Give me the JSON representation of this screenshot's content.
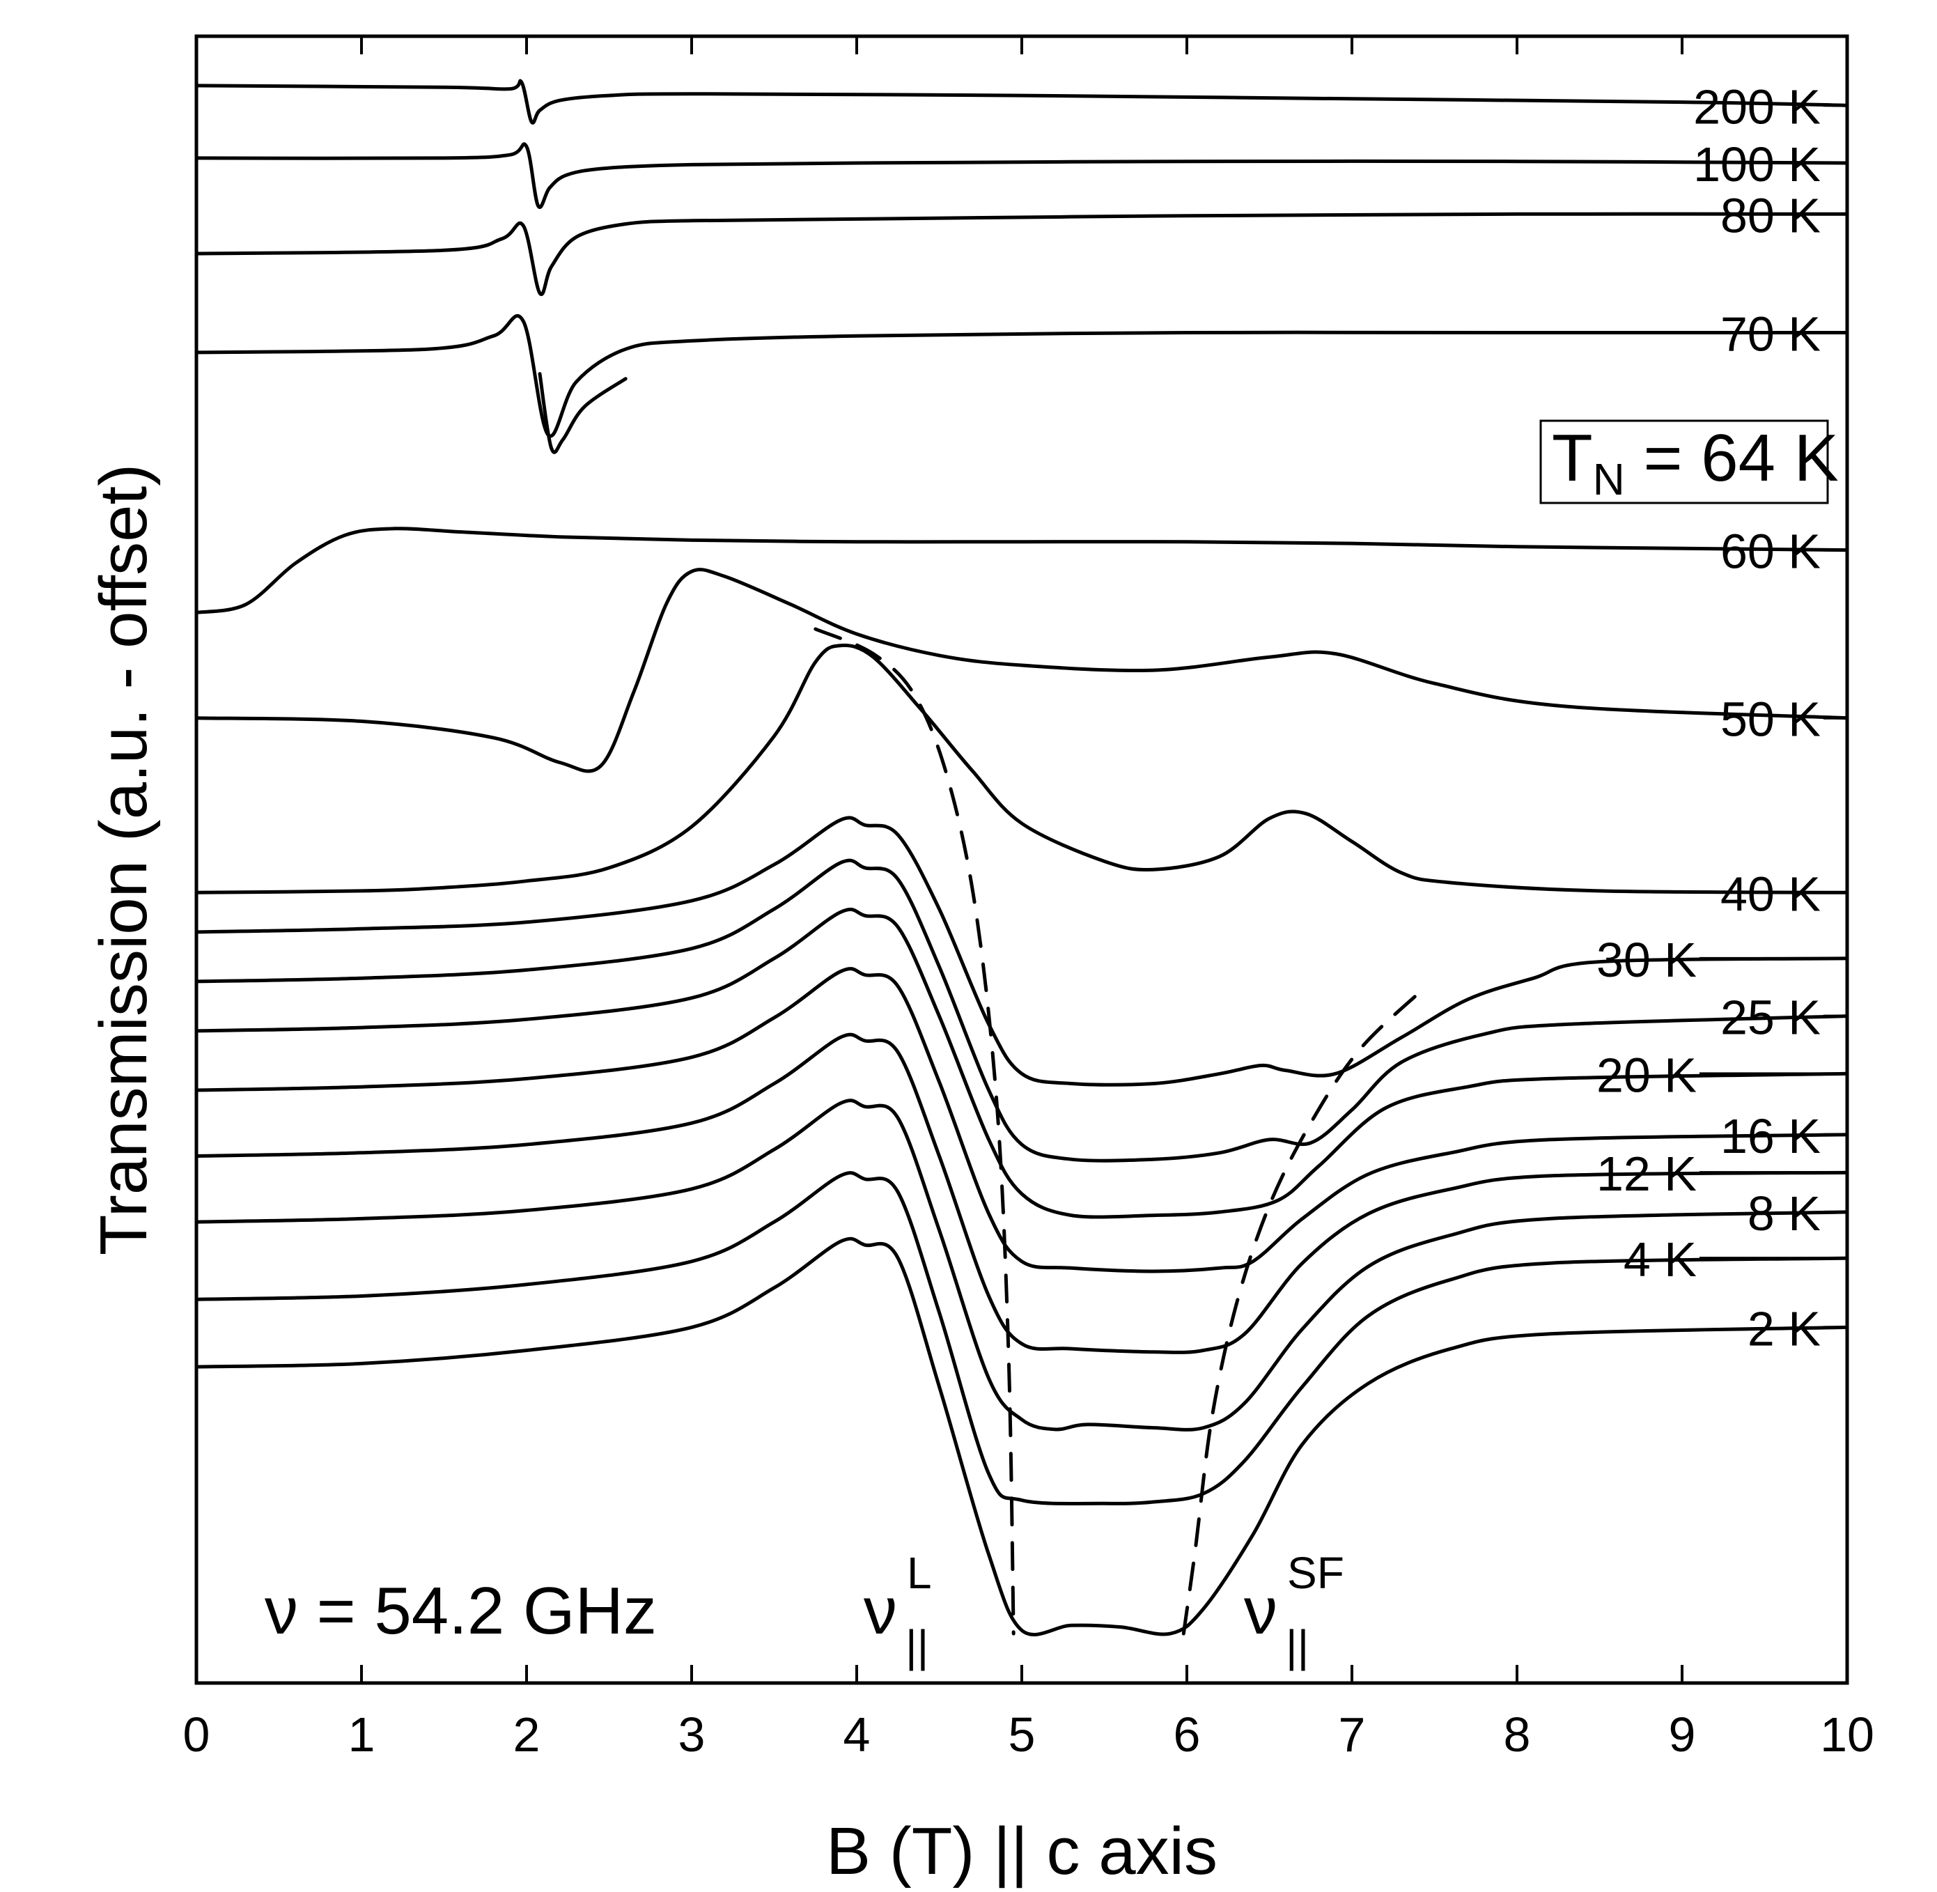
{
  "chart_data": {
    "type": "line",
    "title": "",
    "xlabel": "B (T) || c axis",
    "ylabel": "Transmission (a.u. - offset)",
    "xlim": [
      0,
      10
    ],
    "ylim": [
      0,
      10
    ],
    "xticks": [
      0,
      1,
      2,
      3,
      4,
      5,
      6,
      7,
      8,
      9,
      10
    ],
    "xtick_labels": [
      "0",
      "1",
      "2",
      "3",
      "4",
      "5",
      "6",
      "7",
      "8",
      "9",
      "10"
    ],
    "grid": false,
    "y_units": "arbitrary units, curves offset vertically",
    "annotations": {
      "frequency": "ν = 54.2 GHz",
      "neel_prefix": "T",
      "neel_sub": "N",
      "neel_value": " = 64 K",
      "mode_L_symbol": "ν",
      "mode_L_sup": "L",
      "mode_L_sub": "||",
      "mode_SF_symbol": "ν",
      "mode_SF_sup": "SF",
      "mode_SF_sub": "||"
    },
    "series": [
      {
        "name": "200 K",
        "label": "200 K",
        "x": [
          0,
          1.5,
          1.9,
          1.97,
          2.03,
          2.08,
          2.2,
          2.5,
          3,
          5,
          7,
          9,
          10
        ],
        "y": [
          9.7,
          9.69,
          9.68,
          9.72,
          9.48,
          9.55,
          9.61,
          9.64,
          9.65,
          9.64,
          9.62,
          9.6,
          9.58
        ]
      },
      {
        "name": "100 K",
        "label": "100 K",
        "x": [
          0,
          1.5,
          1.9,
          2.0,
          2.07,
          2.14,
          2.25,
          2.5,
          3,
          4,
          6,
          8,
          10
        ],
        "y": [
          9.26,
          9.26,
          9.28,
          9.33,
          8.97,
          9.08,
          9.16,
          9.2,
          9.22,
          9.23,
          9.24,
          9.24,
          9.23
        ]
      },
      {
        "name": "80 K",
        "label": "80 K",
        "x": [
          0,
          1.5,
          1.85,
          1.98,
          2.08,
          2.15,
          2.3,
          2.6,
          3,
          4,
          6,
          8,
          10
        ],
        "y": [
          8.68,
          8.7,
          8.77,
          8.85,
          8.44,
          8.6,
          8.78,
          8.86,
          8.88,
          8.89,
          8.91,
          8.92,
          8.92
        ]
      },
      {
        "name": "70 K",
        "label": "70 K",
        "x": [
          0,
          1.4,
          1.8,
          1.98,
          2.13,
          2.3,
          2.6,
          3,
          4,
          6,
          8,
          10
        ],
        "y": [
          8.08,
          8.1,
          8.18,
          8.27,
          7.58,
          7.9,
          8.1,
          8.15,
          8.18,
          8.2,
          8.2,
          8.2
        ]
      },
      {
        "name": "70 K lower branch",
        "label": "",
        "x": [
          2.08,
          2.15,
          2.22,
          2.35,
          2.6
        ],
        "y": [
          7.95,
          7.5,
          7.55,
          7.75,
          7.92
        ]
      },
      {
        "name": "60 K",
        "label": "60 K",
        "x": [
          0,
          0.3,
          0.6,
          0.9,
          1.2,
          1.6,
          2.2,
          3,
          4,
          5,
          6,
          7,
          8,
          9,
          10
        ],
        "y": [
          6.5,
          6.55,
          6.8,
          6.97,
          7.01,
          6.99,
          6.96,
          6.94,
          6.93,
          6.93,
          6.93,
          6.92,
          6.9,
          6.89,
          6.88
        ]
      },
      {
        "name": "50 K",
        "label": "50 K",
        "x": [
          0,
          1,
          1.8,
          2.2,
          2.45,
          2.65,
          2.85,
          3.0,
          3.2,
          3.6,
          4.0,
          4.5,
          5,
          5.8,
          6.5,
          6.9,
          7.5,
          8.3,
          10
        ],
        "y": [
          5.86,
          5.84,
          5.74,
          5.59,
          5.57,
          6.02,
          6.56,
          6.75,
          6.72,
          6.55,
          6.37,
          6.24,
          6.18,
          6.15,
          6.23,
          6.25,
          6.07,
          5.93,
          5.86
        ]
      },
      {
        "name": "40 K",
        "label": "40 K",
        "x": [
          0,
          1,
          1.5,
          2,
          2.5,
          3,
          3.5,
          3.75,
          3.9,
          4.1,
          4.4,
          4.7,
          5,
          5.5,
          5.8,
          6.2,
          6.5,
          6.72,
          7.0,
          7.3,
          7.6,
          8.5,
          10
        ],
        "y": [
          4.8,
          4.81,
          4.83,
          4.87,
          4.95,
          5.2,
          5.75,
          6.2,
          6.3,
          6.23,
          5.9,
          5.54,
          5.22,
          4.99,
          4.94,
          5.02,
          5.25,
          5.28,
          5.11,
          4.92,
          4.86,
          4.81,
          4.8
        ]
      },
      {
        "name": "30 K",
        "label": "30 K",
        "x": [
          0,
          1,
          2,
          3,
          3.5,
          3.9,
          4.05,
          4.25,
          4.5,
          4.8,
          5.0,
          5.3,
          5.8,
          6.2,
          6.45,
          6.6,
          6.9,
          7.3,
          7.7,
          8.1,
          8.5,
          10
        ],
        "y": [
          4.56,
          4.58,
          4.62,
          4.75,
          4.97,
          5.24,
          5.21,
          5.15,
          4.7,
          4.0,
          3.7,
          3.64,
          3.64,
          3.7,
          3.75,
          3.72,
          3.7,
          3.92,
          4.15,
          4.28,
          4.38,
          4.4
        ]
      },
      {
        "name": "25 K",
        "label": "25 K",
        "x": [
          0,
          1,
          2,
          3,
          3.5,
          3.9,
          4.05,
          4.25,
          4.5,
          4.8,
          5.0,
          5.3,
          5.8,
          6.2,
          6.5,
          6.75,
          7.0,
          7.3,
          7.8,
          8.3,
          10
        ],
        "y": [
          4.26,
          4.28,
          4.33,
          4.46,
          4.7,
          4.98,
          4.95,
          4.88,
          4.35,
          3.6,
          3.27,
          3.18,
          3.18,
          3.22,
          3.3,
          3.28,
          3.48,
          3.77,
          3.94,
          4.0,
          4.05
        ]
      },
      {
        "name": "20 K",
        "label": "20 K",
        "x": [
          0,
          1,
          2,
          3,
          3.5,
          3.9,
          4.05,
          4.25,
          4.5,
          4.8,
          5.0,
          5.3,
          5.8,
          6.2,
          6.55,
          6.8,
          7.2,
          7.7,
          8.2,
          10
        ],
        "y": [
          3.96,
          3.98,
          4.03,
          4.16,
          4.4,
          4.68,
          4.66,
          4.59,
          4.05,
          3.3,
          2.97,
          2.84,
          2.84,
          2.86,
          2.93,
          3.14,
          3.49,
          3.62,
          3.67,
          3.7
        ]
      },
      {
        "name": "16 K",
        "label": "16 K",
        "x": [
          0,
          1,
          2,
          3,
          3.5,
          3.9,
          4.05,
          4.25,
          4.5,
          4.8,
          5.0,
          5.3,
          5.8,
          6.2,
          6.4,
          6.7,
          7.1,
          7.6,
          8.2,
          10
        ],
        "y": [
          3.6,
          3.62,
          3.67,
          3.8,
          4.04,
          4.32,
          4.3,
          4.23,
          3.65,
          2.85,
          2.56,
          2.52,
          2.5,
          2.52,
          2.56,
          2.82,
          3.09,
          3.22,
          3.3,
          3.33
        ]
      },
      {
        "name": "12 K",
        "label": "12 K",
        "x": [
          0,
          1,
          2,
          3,
          3.5,
          3.9,
          4.05,
          4.25,
          4.5,
          4.8,
          5.0,
          5.3,
          5.8,
          6.1,
          6.35,
          6.7,
          7.1,
          7.6,
          8.2,
          10
        ],
        "y": [
          3.2,
          3.22,
          3.27,
          3.4,
          3.64,
          3.92,
          3.9,
          3.83,
          3.2,
          2.35,
          2.06,
          2.03,
          2.01,
          2.02,
          2.12,
          2.55,
          2.85,
          3.0,
          3.08,
          3.1
        ]
      },
      {
        "name": "8 K",
        "label": "8 K",
        "x": [
          0,
          1,
          2,
          3,
          3.5,
          3.9,
          4.05,
          4.25,
          4.5,
          4.8,
          5.0,
          5.2,
          5.4,
          5.8,
          6.1,
          6.35,
          6.7,
          7.1,
          7.6,
          8.2,
          10
        ],
        "y": [
          2.8,
          2.82,
          2.87,
          3.0,
          3.24,
          3.52,
          3.5,
          3.43,
          2.75,
          1.85,
          1.6,
          1.54,
          1.57,
          1.55,
          1.55,
          1.7,
          2.15,
          2.53,
          2.72,
          2.82,
          2.86
        ]
      },
      {
        "name": "4 K",
        "label": "4 K",
        "x": [
          0,
          1,
          2,
          3,
          3.5,
          3.9,
          4.05,
          4.25,
          4.5,
          4.8,
          5.0,
          5.5,
          5.8,
          6.1,
          6.35,
          6.7,
          7.1,
          7.6,
          8.2,
          10
        ],
        "y": [
          2.33,
          2.35,
          2.42,
          2.56,
          2.8,
          3.08,
          3.06,
          2.98,
          2.25,
          1.27,
          1.11,
          1.09,
          1.1,
          1.15,
          1.35,
          1.8,
          2.23,
          2.45,
          2.55,
          2.58
        ]
      },
      {
        "name": "2 K",
        "label": "2 K",
        "x": [
          0,
          1,
          2,
          3,
          3.5,
          3.9,
          4.05,
          4.25,
          4.5,
          4.8,
          5.0,
          5.3,
          5.6,
          5.9,
          6.1,
          6.4,
          6.7,
          7.1,
          7.6,
          8.2,
          10
        ],
        "y": [
          1.92,
          1.94,
          2.02,
          2.16,
          2.4,
          2.68,
          2.66,
          2.58,
          1.8,
          0.78,
          0.32,
          0.35,
          0.34,
          0.3,
          0.45,
          0.9,
          1.45,
          1.82,
          2.03,
          2.12,
          2.16
        ]
      },
      {
        "name": "ν_L guide (dashed)",
        "label": "",
        "dashed": true,
        "x": [
          3.75,
          4.1,
          4.35,
          4.55,
          4.72,
          4.85,
          4.92,
          4.95
        ],
        "y": [
          6.4,
          6.25,
          6.0,
          5.5,
          4.7,
          3.5,
          2.0,
          0.3
        ]
      },
      {
        "name": "ν_SF guide (dashed)",
        "label": "",
        "dashed": true,
        "x": [
          5.98,
          6.05,
          6.15,
          6.3,
          6.5,
          6.75,
          7.05,
          7.45
        ],
        "y": [
          0.3,
          0.8,
          1.6,
          2.3,
          2.9,
          3.4,
          3.85,
          4.23
        ]
      }
    ],
    "label_anchors": [
      {
        "series": "200 K",
        "y": 9.58,
        "side": "right"
      },
      {
        "series": "100 K",
        "y": 9.23,
        "side": "right"
      },
      {
        "series": "80 K",
        "y": 8.92,
        "side": "right"
      },
      {
        "series": "70 K",
        "y": 8.2,
        "side": "right"
      },
      {
        "series": "60 K",
        "y": 6.88,
        "side": "right"
      },
      {
        "series": "50 K",
        "y": 5.86,
        "side": "right"
      },
      {
        "series": "40 K",
        "y": 4.8,
        "side": "right"
      },
      {
        "series": "30 K",
        "y": 4.4,
        "side": "left"
      },
      {
        "series": "25 K",
        "y": 4.05,
        "side": "right"
      },
      {
        "series": "20 K",
        "y": 3.7,
        "side": "left"
      },
      {
        "series": "16 K",
        "y": 3.33,
        "side": "right"
      },
      {
        "series": "12 K",
        "y": 3.1,
        "side": "left"
      },
      {
        "series": "8 K",
        "y": 2.86,
        "side": "right"
      },
      {
        "series": "4 K",
        "y": 2.58,
        "side": "left"
      },
      {
        "series": "2 K",
        "y": 2.16,
        "side": "right"
      }
    ]
  }
}
